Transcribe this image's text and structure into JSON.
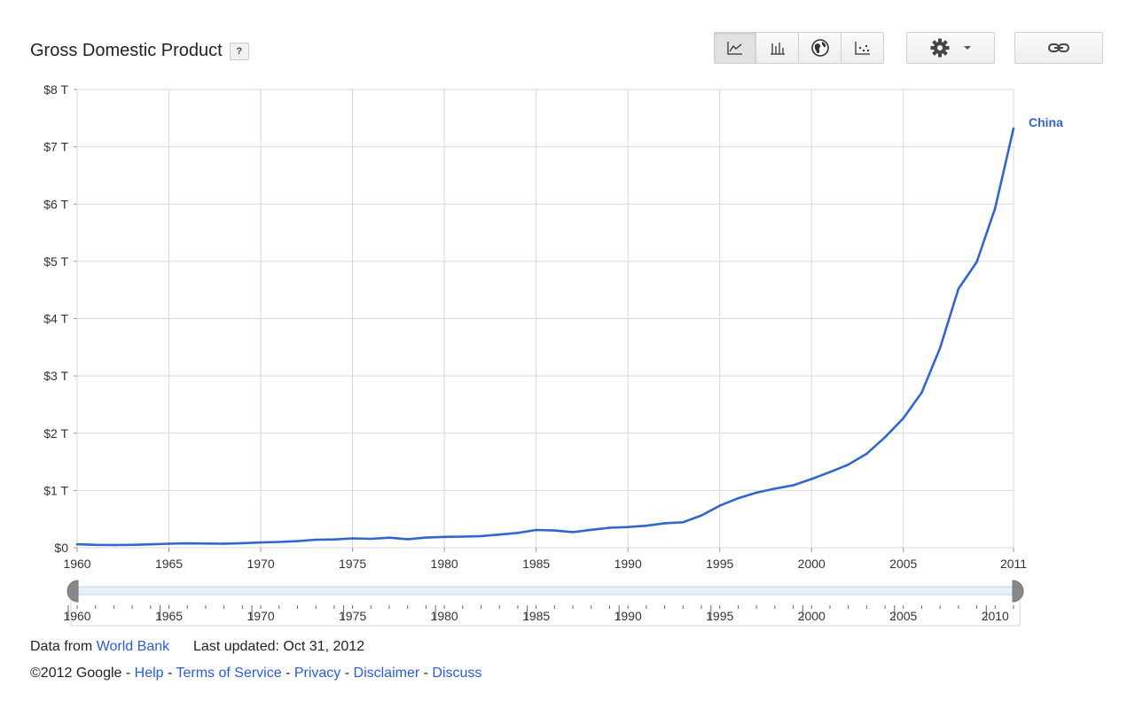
{
  "header": {
    "title": "Gross Domestic Product",
    "help_label": "?"
  },
  "toolbar": {
    "buttons": [
      {
        "icon": "line-chart-icon",
        "active": true
      },
      {
        "icon": "bar-chart-icon",
        "active": false
      },
      {
        "icon": "map-icon",
        "active": false
      },
      {
        "icon": "scatter-icon",
        "active": false
      }
    ],
    "settings_icon": "gear-icon",
    "link_icon": "link-icon"
  },
  "colors": {
    "series": "#3366cc",
    "grid": "#d9d9d9",
    "link": "#2a5bd7",
    "slider_fill": "#e6f1f8"
  },
  "chart_data": {
    "type": "line",
    "title": "Gross Domestic Product",
    "xlabel": "",
    "ylabel": "",
    "xlim": [
      1960,
      2011
    ],
    "ylim": [
      0,
      8
    ],
    "grid": true,
    "legend": "end-of-line label",
    "x_ticks": [
      "1960",
      "1965",
      "1970",
      "1975",
      "1980",
      "1985",
      "1990",
      "1995",
      "2000",
      "2005",
      "2011"
    ],
    "y_ticks": [
      "$0",
      "$1 T",
      "$2 T",
      "$3 T",
      "$4 T",
      "$5 T",
      "$6 T",
      "$7 T",
      "$8 T"
    ],
    "series": [
      {
        "name": "China",
        "unit": "trillion USD",
        "x": [
          1960,
          1961,
          1962,
          1963,
          1964,
          1965,
          1966,
          1967,
          1968,
          1969,
          1970,
          1971,
          1972,
          1973,
          1974,
          1975,
          1976,
          1977,
          1978,
          1979,
          1980,
          1981,
          1982,
          1983,
          1984,
          1985,
          1986,
          1987,
          1988,
          1989,
          1990,
          1991,
          1992,
          1993,
          1994,
          1995,
          1996,
          1997,
          1998,
          1999,
          2000,
          2001,
          2002,
          2003,
          2004,
          2005,
          2006,
          2007,
          2008,
          2009,
          2010,
          2011
        ],
        "values": [
          0.06,
          0.05,
          0.047,
          0.05,
          0.059,
          0.07,
          0.076,
          0.072,
          0.07,
          0.079,
          0.092,
          0.1,
          0.114,
          0.139,
          0.144,
          0.163,
          0.154,
          0.175,
          0.148,
          0.177,
          0.189,
          0.194,
          0.203,
          0.229,
          0.259,
          0.309,
          0.3,
          0.273,
          0.312,
          0.348,
          0.36,
          0.383,
          0.427,
          0.444,
          0.564,
          0.734,
          0.863,
          0.961,
          1.03,
          1.09,
          1.2,
          1.32,
          1.45,
          1.64,
          1.93,
          2.26,
          2.71,
          3.49,
          4.52,
          4.99,
          5.93,
          7.32
        ]
      }
    ],
    "slider": {
      "range": [
        1960,
        2011
      ],
      "labels": [
        "1960",
        "1965",
        "1970",
        "1975",
        "1980",
        "1985",
        "1990",
        "1995",
        "2000",
        "2005",
        "2010"
      ]
    }
  },
  "footer": {
    "data_from_prefix": "Data from",
    "data_source": "World Bank",
    "last_updated": "Last updated: Oct 31, 2012",
    "copyright": "©2012 Google",
    "sep": " - ",
    "links": [
      "Help",
      "Terms of Service",
      "Privacy",
      "Disclaimer",
      "Discuss"
    ]
  }
}
